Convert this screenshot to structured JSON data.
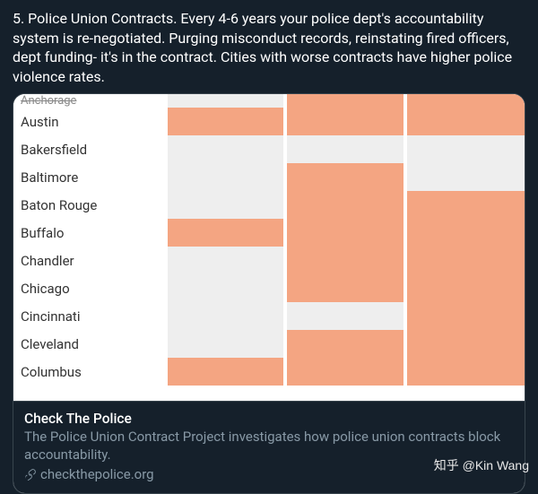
{
  "tweet": {
    "text": "5. Police Union Contracts. Every 4-6 years your police dept's accountability system is re-negotiated. Purging misconduct records, reinstating fired officers, dept funding- it's in the contract. Cities with worse contracts have higher police violence rates."
  },
  "table": {
    "colors": {
      "on": "#f4a582",
      "off": "#eeeeee",
      "bg": "#ffffff"
    },
    "columns": 3,
    "rows": [
      {
        "city": "Anchorage",
        "cells": [
          false,
          true,
          true
        ],
        "cut": true
      },
      {
        "city": "Austin",
        "cells": [
          true,
          true,
          true
        ]
      },
      {
        "city": "Bakersfield",
        "cells": [
          false,
          false,
          false
        ]
      },
      {
        "city": "Baltimore",
        "cells": [
          false,
          true,
          false
        ]
      },
      {
        "city": "Baton Rouge",
        "cells": [
          false,
          true,
          true
        ]
      },
      {
        "city": "Buffalo",
        "cells": [
          true,
          true,
          true
        ]
      },
      {
        "city": "Chandler",
        "cells": [
          false,
          true,
          true
        ]
      },
      {
        "city": "Chicago",
        "cells": [
          false,
          true,
          true
        ]
      },
      {
        "city": "Cincinnati",
        "cells": [
          false,
          false,
          true
        ]
      },
      {
        "city": "Cleveland",
        "cells": [
          false,
          true,
          true
        ]
      },
      {
        "city": "Columbus",
        "cells": [
          true,
          true,
          true
        ]
      }
    ]
  },
  "card": {
    "title": "Check The Police",
    "description": "The Police Union Contract Project investigates how police union contracts block accountability.",
    "domain": "checkthepolice.org"
  },
  "watermark": "知乎 @Kin Wang"
}
